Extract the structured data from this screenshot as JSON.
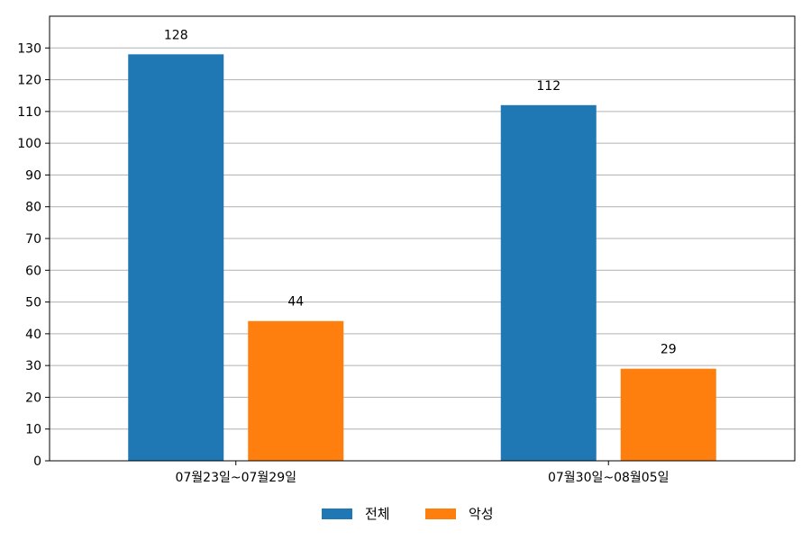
{
  "chart_data": {
    "type": "bar",
    "categories": [
      "07월23일~07월29일",
      "07월30일~08월05일"
    ],
    "series": [
      {
        "name": "전체",
        "color": "#1f77b4",
        "values": [
          128,
          112
        ]
      },
      {
        "name": "악성",
        "color": "#ff7f0e",
        "values": [
          44,
          29
        ]
      }
    ],
    "ylim": [
      0,
      140
    ],
    "yticks": [
      0,
      10,
      20,
      30,
      40,
      50,
      60,
      70,
      80,
      90,
      100,
      110,
      120,
      130
    ],
    "grid": true,
    "legend_position": "bottom-center",
    "data_labels": true
  }
}
